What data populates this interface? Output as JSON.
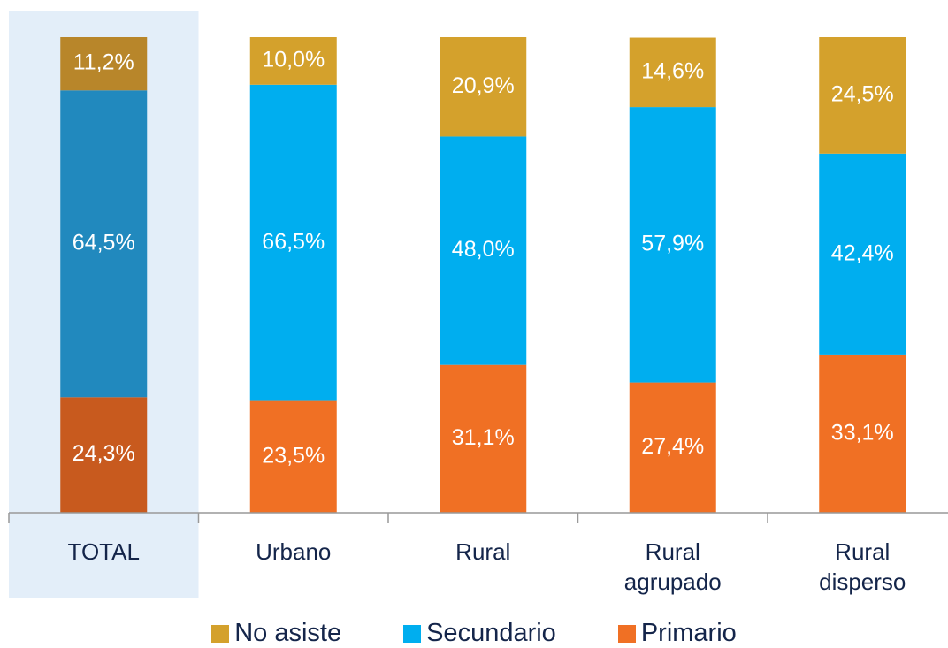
{
  "chart_data": {
    "type": "stacked_bar",
    "categories": [
      "TOTAL",
      "Urbano",
      "Rural",
      "Rural agrupado",
      "Rural disperso"
    ],
    "ylim": [
      0,
      100
    ],
    "legend": "bottom",
    "highlight_color": "#e3eef9",
    "series": [
      {
        "name": "No asiste",
        "color": "#d4a12c",
        "colors": [
          "#b8862a",
          "#d4a12c",
          "#d4a12c",
          "#d4a12c",
          "#d4a12c"
        ],
        "values": [
          11.2,
          10.0,
          20.9,
          14.6,
          24.5
        ],
        "value_labels": [
          "11,2%",
          "10,0%",
          "20,9%",
          "14,6%",
          "24,5%"
        ]
      },
      {
        "name": "Secundario",
        "color": "#00aeef",
        "colors": [
          "#2189be",
          "#00aeef",
          "#00aeef",
          "#00aeef",
          "#00aeef"
        ],
        "values": [
          64.5,
          66.5,
          48.0,
          57.9,
          42.4
        ],
        "value_labels": [
          "64,5%",
          "66,5%",
          "48,0%",
          "57,9%",
          "42,4%"
        ]
      },
      {
        "name": "Primario",
        "color": "#f07024",
        "colors": [
          "#c85a1e",
          "#f07024",
          "#f07024",
          "#f07024",
          "#f07024"
        ],
        "values": [
          24.3,
          23.5,
          31.1,
          27.4,
          33.1
        ],
        "value_labels": [
          "24,3%",
          "23,5%",
          "31,1%",
          "27,4%",
          "33,1%"
        ]
      }
    ]
  }
}
